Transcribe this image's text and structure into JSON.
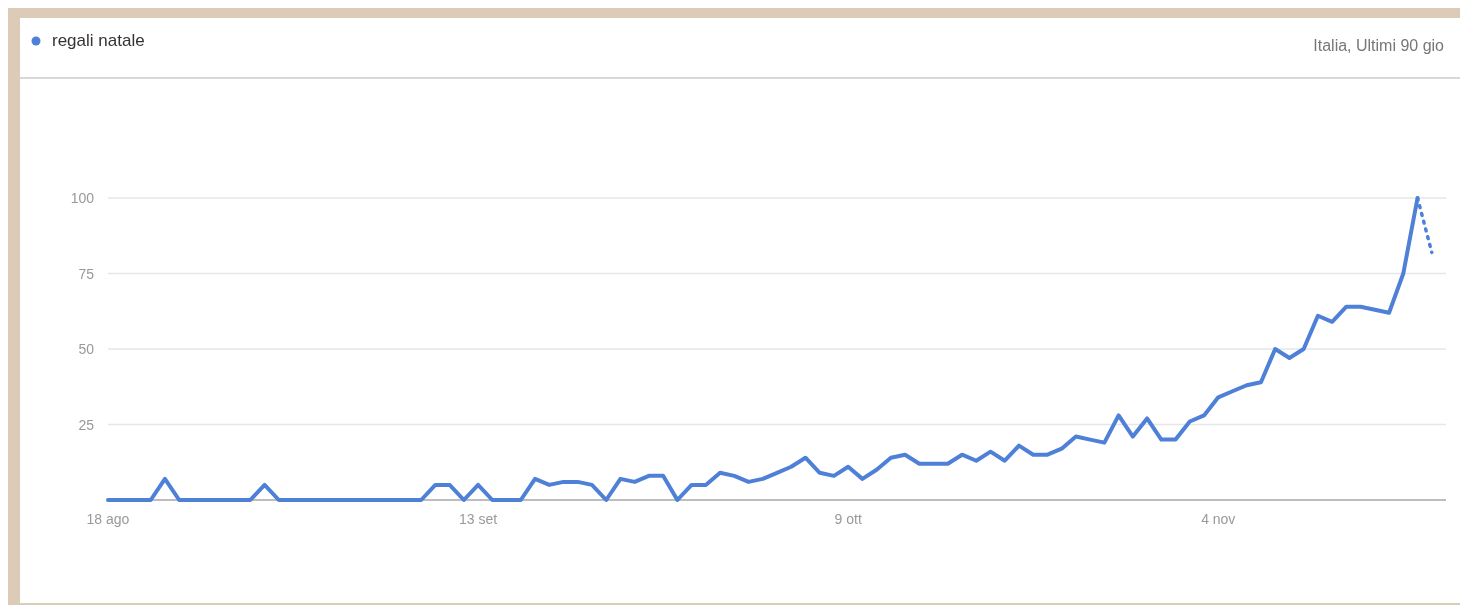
{
  "chart_data": {
    "type": "line",
    "subtitle": "Italia, Ultimi 90 gio",
    "x": [
      "--08-18",
      "--08-19",
      "--08-20",
      "--08-21",
      "--08-22",
      "--08-23",
      "--08-24",
      "--08-25",
      "--08-26",
      "--08-27",
      "--08-28",
      "--08-29",
      "--08-30",
      "--08-31",
      "--09-01",
      "--09-02",
      "--09-03",
      "--09-04",
      "--09-05",
      "--09-06",
      "--09-07",
      "--09-08",
      "--09-09",
      "--09-10",
      "--09-11",
      "--09-12",
      "--09-13",
      "--09-14",
      "--09-15",
      "--09-16",
      "--09-17",
      "--09-18",
      "--09-19",
      "--09-20",
      "--09-21",
      "--09-22",
      "--09-23",
      "--09-24",
      "--09-25",
      "--09-26",
      "--09-27",
      "--09-28",
      "--09-29",
      "--09-30",
      "--10-01",
      "--10-02",
      "--10-03",
      "--10-04",
      "--10-05",
      "--10-06",
      "--10-07",
      "--10-08",
      "--10-09",
      "--10-10",
      "--10-11",
      "--10-12",
      "--10-13",
      "--10-14",
      "--10-15",
      "--10-16",
      "--10-17",
      "--10-18",
      "--10-19",
      "--10-20",
      "--10-21",
      "--10-22",
      "--10-23",
      "--10-24",
      "--10-25",
      "--10-26",
      "--10-27",
      "--10-28",
      "--10-29",
      "--10-30",
      "--10-31",
      "--11-01",
      "--11-02",
      "--11-03",
      "--11-04",
      "--11-05",
      "--11-06",
      "--11-07",
      "--11-08",
      "--11-09",
      "--11-10",
      "--11-11",
      "--11-12",
      "--11-13",
      "--11-14",
      "--11-15",
      "--11-16",
      "--11-17",
      "--11-18"
    ],
    "series": [
      {
        "name": "regali natale",
        "color": "#4e80d8",
        "values": [
          0,
          0,
          0,
          0,
          7,
          0,
          0,
          0,
          0,
          0,
          0,
          5,
          0,
          0,
          0,
          0,
          0,
          0,
          0,
          0,
          0,
          0,
          0,
          5,
          5,
          0,
          5,
          0,
          0,
          0,
          7,
          5,
          6,
          6,
          5,
          0,
          7,
          6,
          8,
          8,
          0,
          5,
          5,
          9,
          8,
          6,
          7,
          9,
          11,
          14,
          9,
          8,
          11,
          7,
          10,
          14,
          15,
          12,
          12,
          12,
          15,
          13,
          16,
          13,
          18,
          15,
          15,
          17,
          21,
          20,
          19,
          28,
          21,
          27,
          20,
          20,
          26,
          28,
          34,
          36,
          38,
          39,
          50,
          47,
          50,
          61,
          59,
          64,
          64,
          63,
          62,
          75,
          100
        ]
      },
      {
        "color": "#4e80d8",
        "line_style": "dotted",
        "x": [
          "--11-18",
          "--11-19"
        ],
        "values": [
          100,
          82
        ]
      }
    ],
    "xlim": [
      "--08-18",
      "--11-20"
    ],
    "xticks": [
      {
        "value": "--08-18",
        "label": "18 ago"
      },
      {
        "value": "--09-13",
        "label": "13 set"
      },
      {
        "value": "--10-09",
        "label": "9 ott"
      },
      {
        "value": "--11-04",
        "label": "4 nov"
      }
    ],
    "ylim": [
      0,
      100
    ],
    "yticks": [
      {
        "value": 0,
        "label": null
      },
      25,
      50,
      75,
      100
    ],
    "grid": "y",
    "legend": "top left",
    "line_style": "solid"
  }
}
